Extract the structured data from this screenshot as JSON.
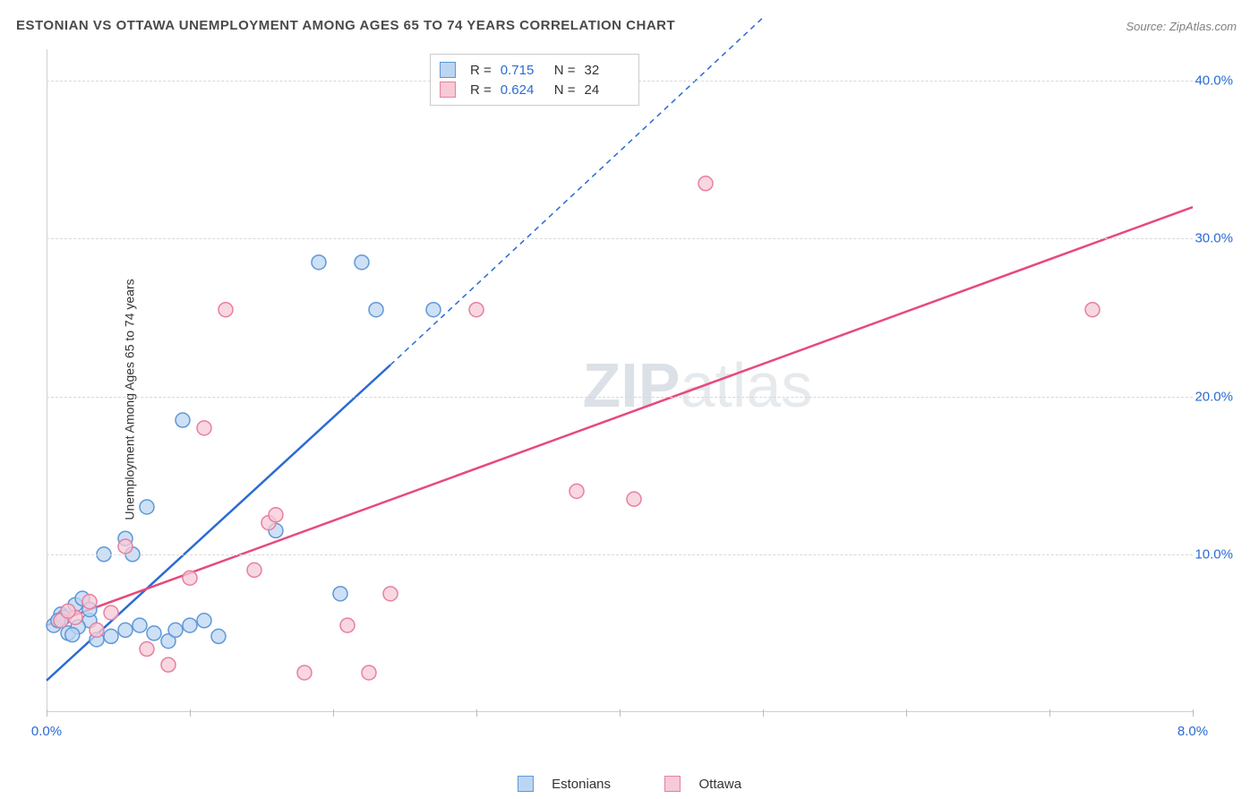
{
  "title": "ESTONIAN VS OTTAWA UNEMPLOYMENT AMONG AGES 65 TO 74 YEARS CORRELATION CHART",
  "source": "Source: ZipAtlas.com",
  "y_axis_label": "Unemployment Among Ages 65 to 74 years",
  "watermark_a": "ZIP",
  "watermark_b": "atlas",
  "chart": {
    "type": "scatter",
    "xlim": [
      0,
      8.0
    ],
    "ylim": [
      0,
      42
    ],
    "x_ticks": [
      0.0,
      1.0,
      2.0,
      3.0,
      4.0,
      5.0,
      6.0,
      7.0,
      8.0
    ],
    "x_tick_labels_shown": {
      "0": "0.0%",
      "8": "8.0%"
    },
    "y_ticks": [
      10.0,
      20.0,
      30.0,
      40.0
    ],
    "y_tick_labels": [
      "10.0%",
      "20.0%",
      "30.0%",
      "40.0%"
    ],
    "grid_color": "#d8d8d8",
    "background_color": "#ffffff",
    "marker_radius": 8,
    "marker_stroke_width": 1.5,
    "series": [
      {
        "name": "Estonians",
        "color_fill": "#bcd6f2",
        "color_stroke": "#5f97d8",
        "trend_color": "#2a6bd4",
        "R": "0.715",
        "N": "32",
        "trend": {
          "x1": 0.0,
          "y1": 2.0,
          "x2": 2.4,
          "y2": 22.0,
          "dash_x2": 5.0,
          "dash_y2": 44.0
        },
        "points": [
          [
            0.05,
            5.5
          ],
          [
            0.1,
            6.2
          ],
          [
            0.15,
            5.0
          ],
          [
            0.2,
            6.8
          ],
          [
            0.25,
            7.2
          ],
          [
            0.12,
            6.0
          ],
          [
            0.3,
            5.8
          ],
          [
            0.35,
            4.6
          ],
          [
            0.45,
            4.8
          ],
          [
            0.55,
            5.2
          ],
          [
            0.65,
            5.5
          ],
          [
            0.75,
            5.0
          ],
          [
            0.85,
            4.5
          ],
          [
            0.9,
            5.2
          ],
          [
            1.0,
            5.5
          ],
          [
            1.1,
            5.8
          ],
          [
            1.2,
            4.8
          ],
          [
            0.6,
            10.0
          ],
          [
            0.55,
            11.0
          ],
          [
            0.7,
            13.0
          ],
          [
            0.4,
            10.0
          ],
          [
            0.95,
            18.5
          ],
          [
            2.05,
            7.5
          ],
          [
            1.6,
            11.5
          ],
          [
            1.9,
            28.5
          ],
          [
            2.2,
            28.5
          ],
          [
            2.3,
            25.5
          ],
          [
            2.7,
            25.5
          ],
          [
            0.3,
            6.5
          ],
          [
            0.22,
            5.4
          ],
          [
            0.08,
            5.8
          ],
          [
            0.18,
            4.9
          ]
        ]
      },
      {
        "name": "Ottawa",
        "color_fill": "#f6cad6",
        "color_stroke": "#e87fa0",
        "trend_color": "#e74a7b",
        "R": "0.624",
        "N": "24",
        "trend": {
          "x1": 0.0,
          "y1": 5.5,
          "x2": 8.0,
          "y2": 32.0
        },
        "points": [
          [
            0.1,
            5.8
          ],
          [
            0.2,
            6.0
          ],
          [
            0.3,
            7.0
          ],
          [
            0.45,
            6.3
          ],
          [
            0.55,
            10.5
          ],
          [
            0.85,
            3.0
          ],
          [
            0.7,
            4.0
          ],
          [
            1.0,
            8.5
          ],
          [
            1.1,
            18.0
          ],
          [
            1.25,
            25.5
          ],
          [
            1.45,
            9.0
          ],
          [
            1.55,
            12.0
          ],
          [
            1.6,
            12.5
          ],
          [
            1.8,
            2.5
          ],
          [
            2.1,
            5.5
          ],
          [
            2.25,
            2.5
          ],
          [
            2.4,
            7.5
          ],
          [
            3.0,
            25.5
          ],
          [
            3.7,
            14.0
          ],
          [
            4.1,
            13.5
          ],
          [
            4.6,
            33.5
          ],
          [
            7.3,
            25.5
          ],
          [
            0.35,
            5.2
          ],
          [
            0.15,
            6.4
          ]
        ]
      }
    ]
  },
  "top_legend": {
    "labels": {
      "R": "R =",
      "N": "N ="
    }
  },
  "bottom_legend": {
    "items": [
      "Estonians",
      "Ottawa"
    ]
  }
}
